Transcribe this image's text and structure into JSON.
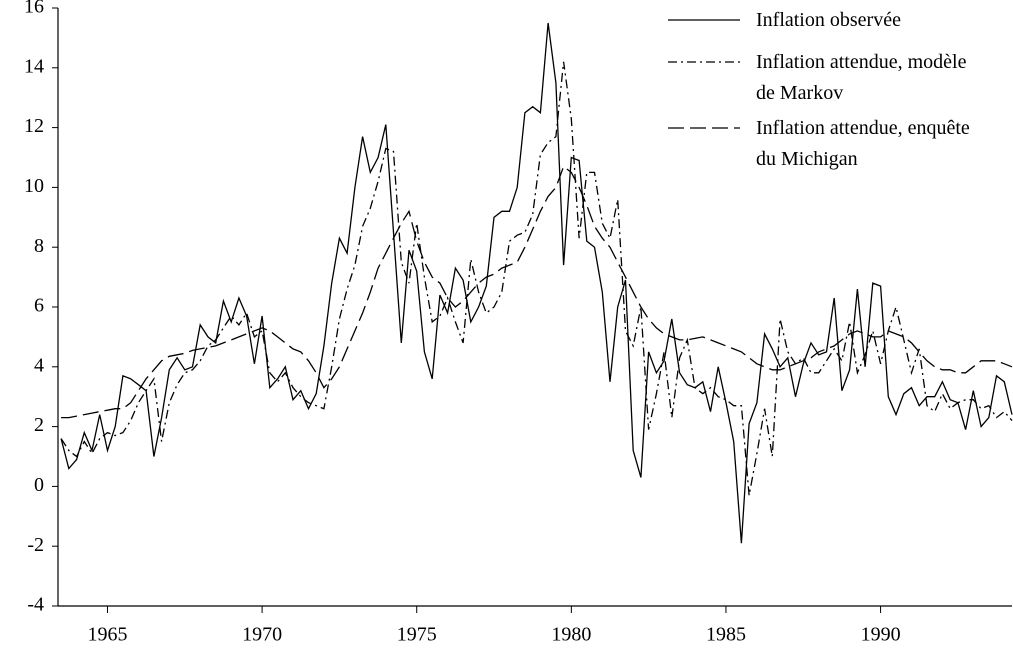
{
  "chart_data": {
    "type": "line",
    "x": [
      1963.5,
      1963.75,
      1964,
      1964.25,
      1964.5,
      1964.75,
      1965,
      1965.25,
      1965.5,
      1965.75,
      1966,
      1966.25,
      1966.5,
      1966.75,
      1967,
      1967.25,
      1967.5,
      1967.75,
      1968,
      1968.25,
      1968.5,
      1968.75,
      1969,
      1969.25,
      1969.5,
      1969.75,
      1970,
      1970.25,
      1970.5,
      1970.75,
      1971,
      1971.25,
      1971.5,
      1971.75,
      1972,
      1972.25,
      1972.5,
      1972.75,
      1973,
      1973.25,
      1973.5,
      1973.75,
      1974,
      1974.25,
      1974.5,
      1974.75,
      1975,
      1975.25,
      1975.5,
      1975.75,
      1976,
      1976.25,
      1976.5,
      1976.75,
      1977,
      1977.25,
      1977.5,
      1977.75,
      1978,
      1978.25,
      1978.5,
      1978.75,
      1979,
      1979.25,
      1979.5,
      1979.75,
      1980,
      1980.25,
      1980.5,
      1980.75,
      1981,
      1981.25,
      1981.5,
      1981.75,
      1982,
      1982.25,
      1982.5,
      1982.75,
      1983,
      1983.25,
      1983.5,
      1983.75,
      1984,
      1984.25,
      1984.5,
      1984.75,
      1985,
      1985.25,
      1985.5,
      1985.75,
      1986,
      1986.25,
      1986.5,
      1986.75,
      1987,
      1987.25,
      1987.5,
      1987.75,
      1988,
      1988.25,
      1988.5,
      1988.75,
      1989,
      1989.25,
      1989.5,
      1989.75,
      1990,
      1990.25,
      1990.5,
      1990.75,
      1991,
      1991.25,
      1991.5,
      1991.75,
      1992,
      1992.25,
      1992.5,
      1992.75,
      1993,
      1993.25,
      1993.5,
      1993.75,
      1994,
      1994.25
    ],
    "series": [
      {
        "name": "Inflation observée",
        "color": "#000000",
        "dash": "none",
        "values": [
          1.6,
          0.6,
          0.9,
          1.8,
          1.2,
          2.4,
          1.2,
          2.0,
          3.7,
          3.6,
          3.4,
          3.2,
          1.0,
          2.3,
          3.9,
          4.3,
          3.9,
          4.0,
          5.4,
          5.0,
          4.8,
          6.2,
          5.5,
          6.3,
          5.7,
          4.1,
          5.7,
          3.3,
          3.6,
          4.0,
          2.9,
          3.2,
          2.6,
          3.1,
          4.7,
          6.8,
          8.3,
          7.8,
          10.0,
          11.7,
          10.5,
          11.0,
          12.1,
          8.5,
          4.8,
          7.9,
          7.2,
          4.5,
          3.6,
          6.4,
          5.8,
          7.3,
          6.9,
          5.5,
          6.0,
          6.7,
          9.0,
          9.2,
          9.2,
          10.0,
          12.5,
          12.7,
          12.5,
          15.5,
          13.5,
          7.4,
          11.0,
          10.9,
          8.2,
          8.0,
          6.5,
          3.5,
          6.0,
          6.9,
          1.2,
          0.3,
          4.5,
          3.8,
          4.2,
          5.6,
          3.8,
          3.4,
          3.3,
          3.5,
          2.5,
          4.0,
          2.8,
          1.5,
          -1.9,
          2.1,
          2.8,
          5.1,
          4.6,
          4.0,
          4.3,
          3.0,
          4.1,
          4.8,
          4.4,
          4.5,
          6.3,
          3.2,
          3.9,
          6.6,
          4.0,
          6.8,
          6.7,
          3.0,
          2.4,
          3.1,
          3.3,
          2.7,
          3.0,
          3.0,
          3.5,
          2.9,
          2.8,
          1.9,
          3.2,
          2.0,
          2.3,
          3.7,
          3.5,
          2.4
        ]
      },
      {
        "name": "Inflation attendue, modèle de Markov",
        "color": "#000000",
        "dash": "9,4,2,4",
        "values": [
          1.6,
          1.2,
          1.0,
          1.5,
          1.1,
          1.6,
          1.8,
          1.7,
          1.8,
          2.2,
          2.8,
          3.2,
          3.6,
          1.5,
          2.8,
          3.4,
          3.8,
          3.9,
          4.2,
          4.7,
          4.9,
          5.3,
          5.7,
          5.4,
          5.8,
          5.0,
          5.2,
          3.8,
          3.5,
          3.8,
          3.3,
          3.0,
          2.8,
          2.7,
          2.6,
          4.0,
          5.6,
          6.6,
          7.4,
          8.7,
          9.3,
          10.2,
          11.3,
          11.2,
          7.5,
          6.8,
          8.8,
          7.0,
          5.5,
          5.7,
          6.3,
          5.5,
          4.8,
          7.6,
          6.5,
          5.8,
          6.0,
          6.5,
          8.2,
          8.4,
          8.5,
          9.1,
          11.1,
          11.5,
          11.7,
          14.2,
          12.3,
          8.3,
          10.5,
          10.5,
          8.8,
          8.3,
          9.6,
          5.2,
          4.7,
          6.0,
          1.9,
          3.1,
          4.5,
          2.3,
          4.3,
          4.9,
          3.3,
          3.1,
          3.3,
          3.0,
          2.9,
          2.7,
          2.7,
          -0.3,
          1.1,
          2.6,
          1.0,
          5.6,
          4.5,
          4.1,
          4.3,
          3.8,
          3.8,
          4.2,
          4.6,
          4.2,
          5.5,
          3.8,
          4.4,
          5.2,
          4.1,
          5.2,
          6.0,
          4.9,
          3.8,
          4.6,
          2.7,
          2.5,
          3.1,
          2.6,
          2.8,
          2.9,
          2.9,
          2.6,
          2.7,
          2.3,
          2.5,
          2.2
        ]
      },
      {
        "name": "Inflation attendue, enquête du Michigan",
        "color": "#000000",
        "dash": "16,6",
        "values": [
          2.3,
          2.3,
          2.35,
          2.4,
          2.45,
          2.5,
          2.55,
          2.6,
          2.6,
          2.8,
          3.2,
          3.6,
          3.9,
          4.2,
          4.35,
          4.4,
          4.45,
          4.55,
          4.6,
          4.65,
          4.7,
          4.8,
          4.9,
          5.0,
          5.1,
          5.2,
          5.3,
          5.2,
          5.0,
          4.8,
          4.6,
          4.5,
          4.2,
          3.8,
          3.3,
          3.6,
          4.0,
          4.6,
          5.2,
          5.8,
          6.5,
          7.3,
          7.8,
          8.3,
          8.8,
          9.2,
          8.2,
          7.5,
          7.0,
          6.8,
          6.3,
          6.0,
          6.2,
          6.5,
          6.8,
          7.0,
          7.1,
          7.3,
          7.4,
          7.5,
          8.0,
          8.6,
          9.2,
          9.7,
          10.0,
          10.7,
          10.5,
          10.0,
          9.4,
          8.7,
          8.3,
          8.0,
          7.5,
          7.0,
          6.5,
          6.0,
          5.6,
          5.3,
          5.1,
          5.0,
          4.9,
          4.9,
          4.95,
          5.0,
          4.9,
          4.8,
          4.7,
          4.6,
          4.5,
          4.3,
          4.1,
          4.0,
          3.9,
          3.9,
          4.0,
          4.1,
          4.2,
          4.3,
          4.5,
          4.6,
          4.7,
          4.9,
          5.1,
          5.2,
          5.1,
          5.0,
          5.0,
          5.2,
          5.1,
          5.0,
          4.8,
          4.5,
          4.2,
          4.0,
          3.9,
          3.9,
          3.8,
          3.8,
          4.0,
          4.2,
          4.2,
          4.2,
          4.1,
          4.0
        ]
      }
    ],
    "xlim": [
      1963.4,
      1994.25
    ],
    "xticks": [
      1965,
      1970,
      1975,
      1980,
      1985,
      1990
    ],
    "ylim": [
      -4,
      16
    ],
    "yticks": [
      -4,
      -2,
      0,
      2,
      4,
      6,
      8,
      10,
      12,
      14,
      16
    ],
    "legend": "top-right"
  }
}
